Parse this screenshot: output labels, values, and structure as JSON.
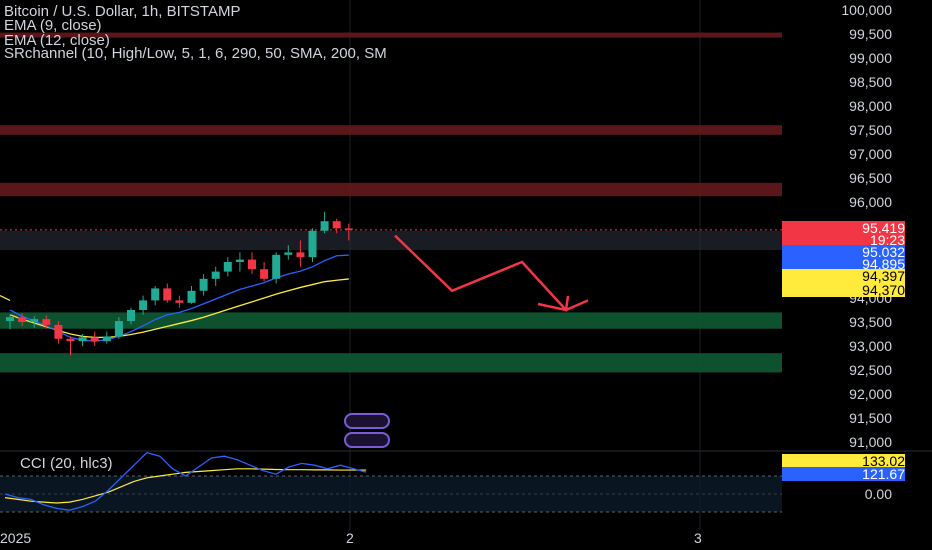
{
  "legend": {
    "title": "Bitcoin / U.S. Dollar, 1h, BITSTAMP",
    "ema9": "EMA (9, close)",
    "ema12": "EMA (12, close)",
    "srchannel": "SRchannel (10, High/Low, 5, 1, 6, 290, 50, SMA, 200, SM"
  },
  "cci_legend": "CCI (20, hlc3)",
  "price_axis": {
    "ticks": [
      "100,000",
      "99,500",
      "99,000",
      "98,500",
      "98,000",
      "97,500",
      "97,000",
      "96,500",
      "96,000",
      "95,500",
      "95,000",
      "94,500",
      "94,000",
      "93,500",
      "93,000",
      "92,500",
      "92,000",
      "91,500",
      "91,000"
    ],
    "tags": [
      {
        "label": "95,419",
        "bg": "#f23645",
        "fg": "#ffffff"
      },
      {
        "label": "19:23",
        "bg": "#f23645",
        "fg": "#ffffff"
      },
      {
        "label": "95,032",
        "bg": "#2962ff",
        "fg": "#ffffff"
      },
      {
        "label": "94,895",
        "bg": "#2962ff",
        "fg": "#ffffff"
      },
      {
        "label": "94,397",
        "bg": "#ffeb3b",
        "fg": "#000000"
      },
      {
        "label": "94,370",
        "bg": "#ffeb3b",
        "fg": "#000000"
      }
    ]
  },
  "cci_axis": {
    "ticks": [
      "0.00"
    ],
    "tags": [
      {
        "label": "133.02",
        "bg": "#ffeb3b",
        "fg": "#000000"
      },
      {
        "label": "121.67",
        "bg": "#2962ff",
        "fg": "#ffffff"
      }
    ]
  },
  "x_axis": {
    "labels": [
      "2025",
      "2",
      "3"
    ]
  },
  "colors": {
    "up": "#22ab94",
    "down": "#f23645",
    "ema_fast": "#2962ff",
    "ema_slow": "#ffeb3b",
    "forecast": "#f23645",
    "cci": "#2962ff",
    "cci_ma": "#ffeb3b"
  },
  "chart_data": {
    "type": "candlestick",
    "symbol": "BTCUSD",
    "interval": "1h",
    "exchange": "BITSTAMP",
    "ylim": [
      90850,
      100000
    ],
    "candles": [
      {
        "o": 93520,
        "h": 93650,
        "l": 93350,
        "c": 93600
      },
      {
        "o": 93600,
        "h": 93680,
        "l": 93420,
        "c": 93500
      },
      {
        "o": 93500,
        "h": 93620,
        "l": 93380,
        "c": 93560
      },
      {
        "o": 93560,
        "h": 93640,
        "l": 93360,
        "c": 93440
      },
      {
        "o": 93440,
        "h": 93520,
        "l": 93050,
        "c": 93150
      },
      {
        "o": 93150,
        "h": 93200,
        "l": 92800,
        "c": 93100
      },
      {
        "o": 93100,
        "h": 93250,
        "l": 93000,
        "c": 93180
      },
      {
        "o": 93180,
        "h": 93300,
        "l": 93000,
        "c": 93100
      },
      {
        "o": 93100,
        "h": 93300,
        "l": 93050,
        "c": 93200
      },
      {
        "o": 93200,
        "h": 93600,
        "l": 93150,
        "c": 93520
      },
      {
        "o": 93520,
        "h": 93800,
        "l": 93450,
        "c": 93750
      },
      {
        "o": 93750,
        "h": 94050,
        "l": 93650,
        "c": 93950
      },
      {
        "o": 93950,
        "h": 94250,
        "l": 93850,
        "c": 94200
      },
      {
        "o": 94200,
        "h": 94300,
        "l": 93900,
        "c": 93950
      },
      {
        "o": 93950,
        "h": 94050,
        "l": 93800,
        "c": 93900
      },
      {
        "o": 93900,
        "h": 94250,
        "l": 93880,
        "c": 94150
      },
      {
        "o": 94150,
        "h": 94500,
        "l": 94050,
        "c": 94400
      },
      {
        "o": 94400,
        "h": 94650,
        "l": 94250,
        "c": 94550
      },
      {
        "o": 94550,
        "h": 94850,
        "l": 94450,
        "c": 94750
      },
      {
        "o": 94750,
        "h": 94950,
        "l": 94550,
        "c": 94800
      },
      {
        "o": 94800,
        "h": 94950,
        "l": 94500,
        "c": 94600
      },
      {
        "o": 94600,
        "h": 94750,
        "l": 94350,
        "c": 94400
      },
      {
        "o": 94400,
        "h": 94950,
        "l": 94300,
        "c": 94900
      },
      {
        "o": 94900,
        "h": 95100,
        "l": 94800,
        "c": 94950
      },
      {
        "o": 94950,
        "h": 95200,
        "l": 94650,
        "c": 94850
      },
      {
        "o": 94850,
        "h": 95450,
        "l": 94750,
        "c": 95400
      },
      {
        "o": 95400,
        "h": 95800,
        "l": 95350,
        "c": 95600
      },
      {
        "o": 95600,
        "h": 95650,
        "l": 95350,
        "c": 95450
      },
      {
        "o": 95450,
        "h": 95550,
        "l": 95200,
        "c": 95419
      }
    ],
    "resistance_zones": [
      [
        99480,
        99530
      ],
      [
        97400,
        97600
      ],
      [
        96120,
        96400
      ]
    ],
    "support_zones": [
      [
        93360,
        93700
      ],
      [
        92450,
        92850
      ]
    ],
    "current_price_zone": [
      95000,
      95400
    ],
    "forecast_path": [
      [
        95300,
        0
      ],
      [
        94150,
        1
      ],
      [
        94750,
        2
      ],
      [
        93750,
        3
      ],
      [
        93950,
        4
      ]
    ],
    "ema_fast": [
      93750,
      93620,
      93520,
      93420,
      93300,
      93180,
      93120,
      93100,
      93130,
      93200,
      93300,
      93420,
      93550,
      93650,
      93700,
      93780,
      93880,
      93980,
      94080,
      94180,
      94250,
      94320,
      94420,
      94500,
      94560,
      94650,
      94780,
      94880,
      94895
    ],
    "ema_slow": [
      93650,
      93560,
      93480,
      93400,
      93320,
      93250,
      93200,
      93180,
      93180,
      93200,
      93240,
      93290,
      93350,
      93410,
      93470,
      93530,
      93600,
      93680,
      93760,
      93840,
      93920,
      94000,
      94080,
      94150,
      94220,
      94280,
      94340,
      94370,
      94397
    ],
    "cci": [
      0,
      -20,
      -30,
      -60,
      -80,
      -90,
      -70,
      -40,
      20,
      90,
      160,
      230,
      210,
      140,
      100,
      150,
      200,
      210,
      190,
      160,
      130,
      110,
      150,
      170,
      160,
      140,
      160,
      140,
      121.67
    ],
    "cci_ma": [
      -20,
      -30,
      -40,
      -45,
      -50,
      -45,
      -30,
      -10,
      10,
      40,
      70,
      90,
      100,
      110,
      120,
      125,
      130,
      135,
      140,
      140,
      138,
      136,
      135,
      135,
      134,
      134,
      133,
      133,
      133.02
    ]
  }
}
